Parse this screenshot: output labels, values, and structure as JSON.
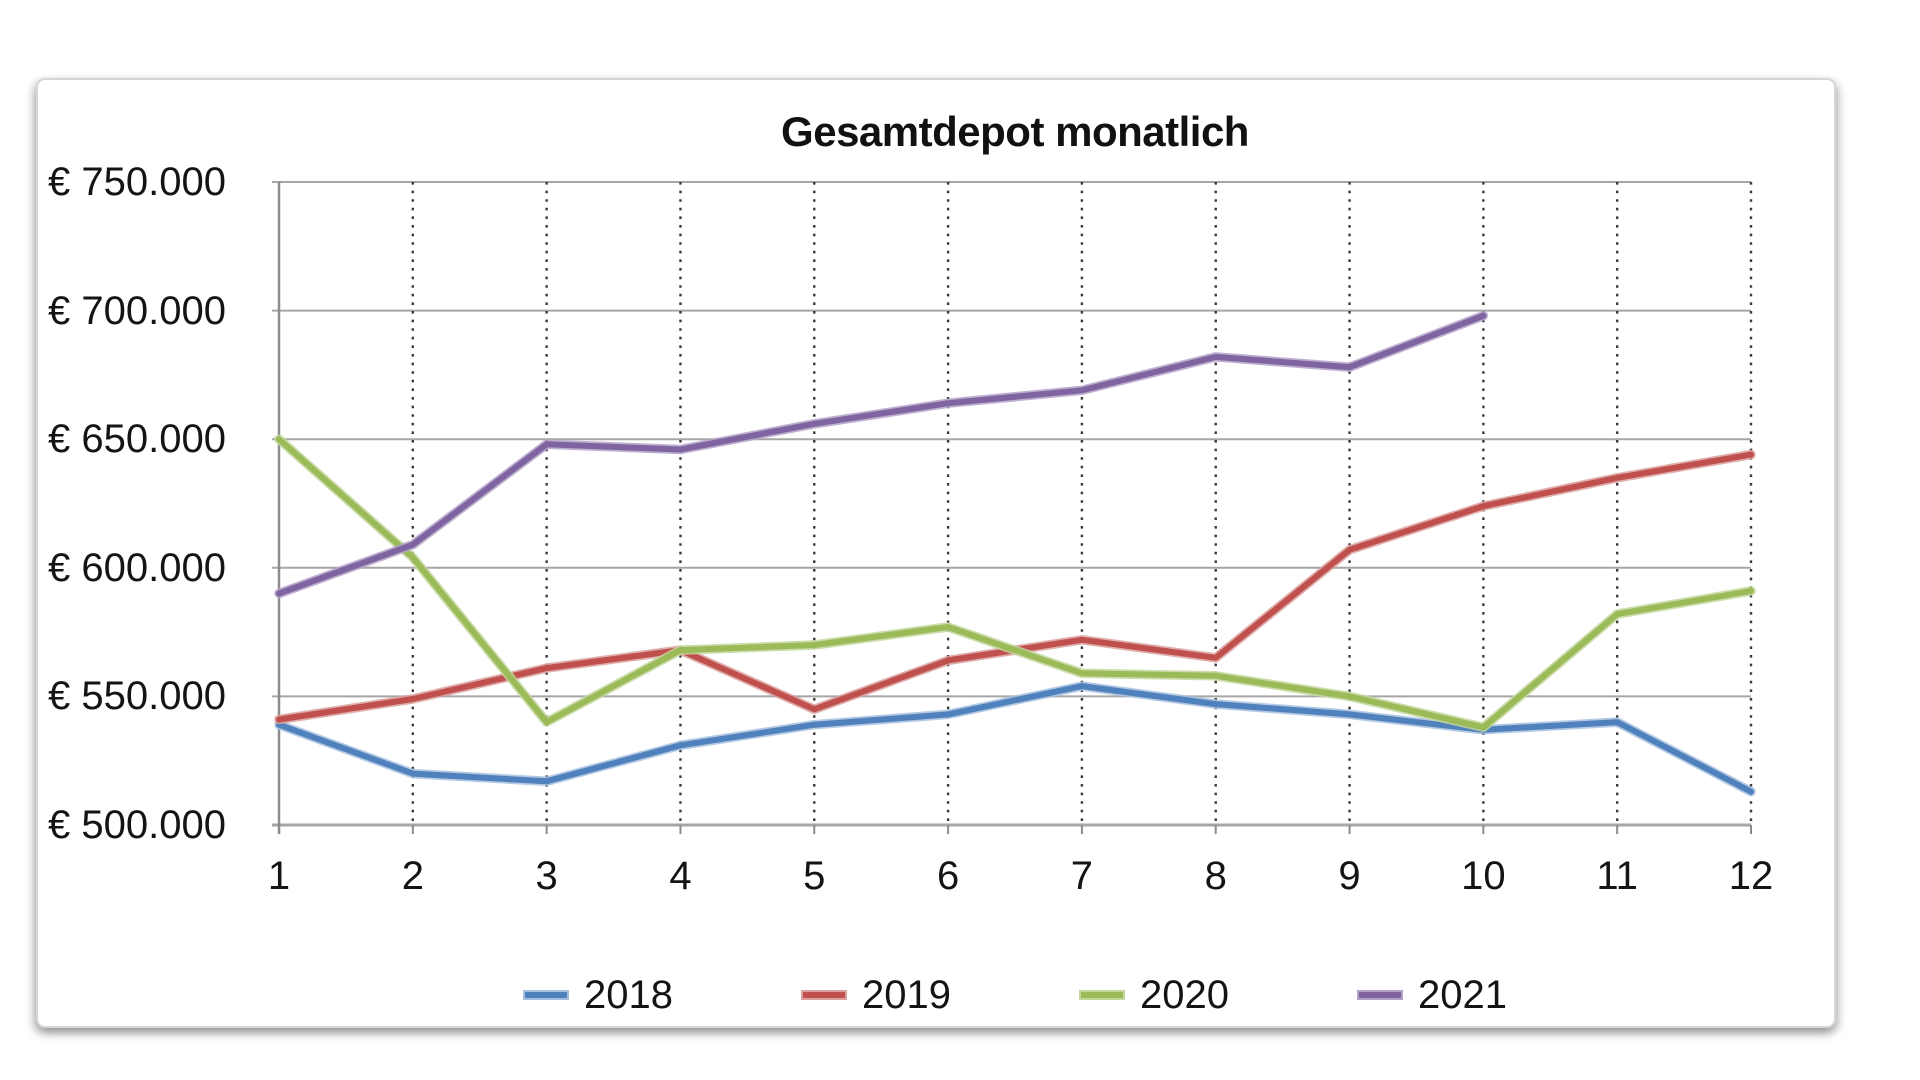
{
  "chart_data": {
    "type": "line",
    "title": "Gesamtdepot monatlich",
    "xlabel": "",
    "ylabel": "",
    "x": [
      1,
      2,
      3,
      4,
      5,
      6,
      7,
      8,
      9,
      10,
      11,
      12
    ],
    "xtick_labels": [
      "1",
      "2",
      "3",
      "4",
      "5",
      "6",
      "7",
      "8",
      "9",
      "10",
      "11",
      "12"
    ],
    "ylim": [
      500000,
      750000
    ],
    "ytick_step": 50000,
    "ytick_labels_top_to_bottom": [
      "€ 750.000",
      "€ 700.000",
      "€ 650.000",
      "€ 600.000",
      "€ 550.000",
      "€ 500.000"
    ],
    "grid": {
      "horizontal": "solid",
      "vertical": "dotted"
    },
    "legend_position": "bottom",
    "series": [
      {
        "name": "2018",
        "color": "#4F81BD",
        "color_light": "#A7BFDE",
        "values": [
          539000,
          520000,
          517000,
          531000,
          539000,
          543000,
          554000,
          547000,
          543000,
          537000,
          540000,
          513000
        ]
      },
      {
        "name": "2019",
        "color": "#C0504D",
        "color_light": "#D9A09E",
        "values": [
          541000,
          549000,
          561000,
          568000,
          545000,
          564000,
          572000,
          565000,
          607000,
          624000,
          635000,
          644000
        ]
      },
      {
        "name": "2020",
        "color": "#9BBB59",
        "color_light": "#C3D69B",
        "values": [
          650000,
          604000,
          540000,
          568000,
          570000,
          577000,
          559000,
          558000,
          550000,
          538000,
          582000,
          591000
        ]
      },
      {
        "name": "2021",
        "color": "#8064A2",
        "color_light": "#B3A2C7",
        "values": [
          590000,
          609000,
          648000,
          646000,
          656000,
          664000,
          669000,
          682000,
          678000,
          698000,
          null,
          null
        ]
      }
    ],
    "axis_colors": {
      "gridline": "#a6a6a6",
      "axis_line": "#8c8c8c",
      "dotted_line": "#3a3a3a"
    }
  }
}
